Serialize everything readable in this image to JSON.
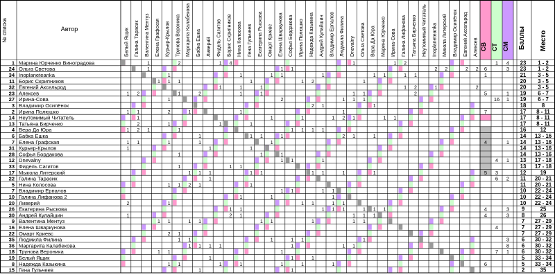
{
  "header": {
    "num_label": "№ списка",
    "author_label": "Автор",
    "col_sv": "СВ",
    "col_st": "СТ",
    "col_sm": "СМ",
    "col_points": "Баллы",
    "col_place": "Место"
  },
  "voters": [
    "Белый Ящик",
    "Галина Тарасик",
    "Валентина Ментуз",
    "Елена Графская",
    "Курьер-Крылов",
    "Трунова Вероника",
    "Маргарита Калабекова",
    "Бабка Ешка",
    "Ливерий",
    "Фидель Сагитов",
    "Борис Скрипников",
    "Нина Колосова",
    "Гена Гульчеев",
    "Екатерина Рыскова",
    "Омарт Криевс",
    "Елена Шваркунова",
    "Софья Бордакова",
    "Ирина Полюшко",
    "Надежда Казыкина",
    "Андрей Кулайшин",
    "Владимир Ерпалов",
    "Людмила Филина",
    "Dnevalny",
    "Ольга Светова",
    "Вера Да Юра",
    "Марина Юрченко",
    "Ирина-Сова",
    "Галина Лифанова",
    "Татьяна Бирченко",
    "Неутомимый Читатель",
    "Inoplaneteanka",
    "Микола Литерский",
    "Владимир Осипёнок",
    "Евгений Аксельрод",
    "Алексев"
  ],
  "rows": [
    {
      "n": "1",
      "author": "Марина Юрченко Виноградова",
      "sv": "",
      "st": "1",
      "sm": "4",
      "points": "23",
      "place": "1 - 2"
    },
    {
      "n": "24",
      "author": "Ольга Светова",
      "sv": "6",
      "st": "",
      "sm": "3",
      "points": "23",
      "place": "1 - 2"
    },
    {
      "n": "34",
      "author": "Inoplaneteanka",
      "sv": "1",
      "st": "",
      "sm": "",
      "points": "21",
      "place": "3 - 5"
    },
    {
      "n": "11",
      "author": "Борис Скрипников",
      "sv": "",
      "st": "",
      "sm": "",
      "points": "20",
      "place": "3 - 5"
    },
    {
      "n": "32",
      "author": "Евгений Аксельрод",
      "sv": "",
      "st": "",
      "sm": "",
      "points": "20",
      "place": "3 - 5"
    },
    {
      "n": "23",
      "author": "Алексев",
      "sv": "5",
      "st": "",
      "sm": "1",
      "points": "19",
      "place": "6 - 7"
    },
    {
      "n": "27",
      "author": "Ирина-Сова",
      "sv": "",
      "st": "16",
      "sm": "1",
      "points": "19",
      "place": "6 - 7"
    },
    {
      "n": "3",
      "author": "Владимир Осипёнок",
      "sv": "",
      "st": "",
      "sm": "",
      "points": "18",
      "place": "8"
    },
    {
      "n": "2",
      "author": "Ирина Полюшко",
      "sv": "7",
      "st": "",
      "sm": "",
      "points": "17",
      "place": "8 - 11"
    },
    {
      "n": "14",
      "author": "Неутомимый Читатель",
      "sv": "7",
      "st": "",
      "sm": "",
      "points": "17",
      "place": "8 - 11"
    },
    {
      "n": "13",
      "author": "Татьяна Бирченко",
      "sv": "",
      "st": "",
      "sm": "",
      "points": "17",
      "place": "8 - 11"
    },
    {
      "n": "4",
      "author": "Вера Да Юра",
      "sv": "",
      "st": "",
      "sm": "",
      "points": "16",
      "place": "12"
    },
    {
      "n": "6",
      "author": "Бабка Ешка",
      "sv": "",
      "st": "",
      "sm": "",
      "points": "14",
      "place": "13 - 16"
    },
    {
      "n": "7",
      "author": "Елена Графская",
      "sv": "4",
      "st": "",
      "sm": "1",
      "points": "14",
      "place": "13 - 16"
    },
    {
      "n": "31",
      "author": "Курьер-Крылов",
      "sv": "",
      "st": "",
      "sm": "",
      "points": "14",
      "place": "13 - 16"
    },
    {
      "n": "28",
      "author": "Софья Бордакова",
      "sv": "",
      "st": "",
      "sm": "",
      "points": "14",
      "place": "13 - 16"
    },
    {
      "n": "12",
      "author": "Dnevalny",
      "sv": "",
      "st": "4",
      "sm": "1",
      "points": "13",
      "place": "17 - 18"
    },
    {
      "n": "33",
      "author": "Фидель Сагитов",
      "sv": "",
      "st": "",
      "sm": "",
      "points": "13",
      "place": "17 - 18"
    },
    {
      "n": "17",
      "author": "Мыкола Литерский",
      "sv": "5",
      "st": "3",
      "sm": "",
      "points": "12",
      "place": "19"
    },
    {
      "n": "22",
      "author": "Галина Тарасик",
      "sv": "",
      "st": "6",
      "sm": "2",
      "points": "11",
      "place": "20 - 21"
    },
    {
      "n": "5",
      "author": "Нина Колосова",
      "sv": "",
      "st": "",
      "sm": "",
      "points": "11",
      "place": "20 - 21"
    },
    {
      "n": "7",
      "author": "Владимир Ерпалов",
      "sv": "",
      "st": "",
      "sm": "",
      "points": "10",
      "place": "22 - 24"
    },
    {
      "n": "10",
      "author": "Галина Лифанова 2",
      "sv": "",
      "st": "",
      "sm": "",
      "points": "10",
      "place": "22 - 24"
    },
    {
      "n": "20",
      "author": "Ливерий",
      "sv": "",
      "st": "",
      "sm": "",
      "points": "10",
      "place": "22 - 24"
    },
    {
      "n": "26",
      "author": "Екатерина Рыскова",
      "sv": "4",
      "st": "",
      "sm": "3",
      "points": "9",
      "place": "25"
    },
    {
      "n": "30",
      "author": "Андрей Кулайшин",
      "sv": "4",
      "st": "",
      "sm": "3",
      "points": "8",
      "place": "26"
    },
    {
      "n": "9",
      "author": "Валентина Ментуз",
      "sv": "",
      "st": "",
      "sm": "",
      "points": "7",
      "place": "27 - 29"
    },
    {
      "n": "16",
      "author": "Елена Шваркунова",
      "sv": "",
      "st": "4",
      "sm": "",
      "points": "7",
      "place": "27 - 29"
    },
    {
      "n": "22",
      "author": "Омарт Криевс",
      "sv": "",
      "st": "",
      "sm": "",
      "points": "7",
      "place": "27 - 29"
    },
    {
      "n": "35",
      "author": "Людмила Филина",
      "sv": "",
      "st": "",
      "sm": "3",
      "points": "6",
      "place": "30 - 32"
    },
    {
      "n": "36",
      "author": "Маргарита Калабекова",
      "sv": "",
      "st": "",
      "sm": "8",
      "points": "6",
      "place": "30 - 32"
    },
    {
      "n": "18",
      "author": "Трунова Вероника",
      "sv": "",
      "st": "7",
      "sm": "1",
      "points": "6",
      "place": "30 - 32"
    },
    {
      "n": "19",
      "author": "Белый Ящик",
      "sv": "",
      "st": "",
      "sm": "",
      "points": "5",
      "place": "33 - 34"
    },
    {
      "n": "8",
      "author": "Надежда Казыкина",
      "sv": "6",
      "st": "",
      "sm": "",
      "points": "5",
      "place": "33 - 34"
    },
    {
      "n": "15",
      "author": "Гена Гульчеев",
      "sv": "",
      "st": "",
      "sm": "",
      "points": "2",
      "place": "35"
    }
  ],
  "cells": [
    "....1..1..2.......1.4..................2.1..1.......1.2..2.....1.2...1.......................1...........2.....",
    "....1....1.................1..1.1..1...1....................2.2..12.2...22...2.2.1.........................",
    "........1..1..........1..2..1.1.......1.........1.1...1.1...............1..........................................",
    "......1.1.1....1.....1..1.........1.2..2.1....1..2.........................1.............................",
    "...1.1............1...1...1............1.1.1.....1.1..1.2...1.......2..1......................................",
    "1.2.......1...2..1.1..1...1..1.........1....1.1.........2..1......................................",
    "...1....1..1...............1..2..1.1......1.1.1....1.2.............................................",
    "...1.......1.1.........1.........1..2.1..1...1..1......................................",
    "1.1..1..2...1..1......1..1...........1.1..1......................................",
    "..1........1.........1.1....1..1..1.....1.2.1.....1.1..1.......................",
    "..2..1..1.........1..1..1..1.1...1....................................",
    "1.2.1..1..1..1.........1...1....1.1.1.1..1...1.1...1........................",
    "...1.1.....1..1.........1.1...1..1........2.1...1.........................",
    "1.1.....1.....1..1.....1.1..1..1.......1.......1.1.........................",
    "1............2..1.......1....1.1.1.1.....1.......1..........................",
    "...1......1......1.2.1....1...1........1.........................",
    "...1.........1.....1...1......1.1.....1..1.1.........................",
    "...1.2....1.........1.1..1...................1..................",
    "...1........1.1.1.......1.1......1..1.1...1.....1..................",
    "...1.........1..1..1.1.......1.....1.1..........................",
    ".1.2....1.1.2.1.........1..1.............1...1.......1...........",
    "...1.....1.1.1...1.........1..1.1.....1.1..1..........................",
    "...1.........1.1.1....1.....1...........1..1.................",
    "2.......1........1.1.1.....1......1.1...1.1..1.1...........",
    ".1...........1......1.1...............1.1.1...1.1.1.............",
    "1........1...1...1..2.1..........1.1........1.1.1.............",
    "......1.1...1.1...........1.1....1..1..1....1.1........",
    ".......1.........1.....1.1...1.1...1.1.........1........",
    "........2.1....1.........1.........1.1.....1..........",
    "..........1.1........1......1...1.1...........1........",
    "...1........1.1.1.1......1......1.........1.1..1.........",
    "......1.1..........2.....1....1......1.1.......1.........",
    "...1.........1..1..........1....1...1........1...........",
    "...1....1.1.......1...1.......1...1..1..1..1.............",
    "..............1........1.....1..1....................1..."
  ]
}
